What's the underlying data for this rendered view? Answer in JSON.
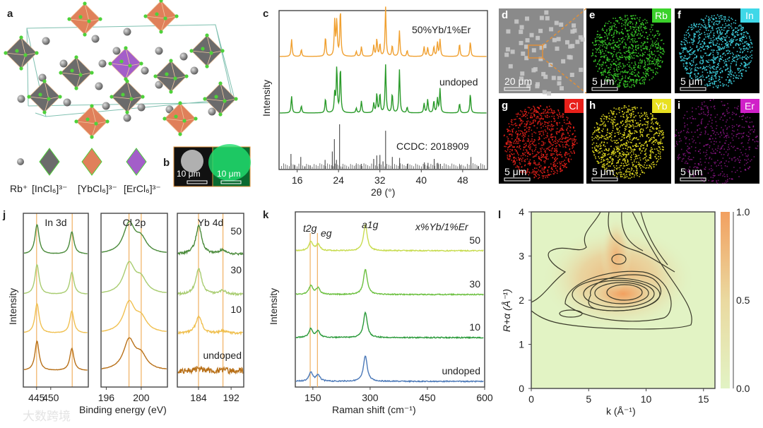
{
  "panel_labels": {
    "a": "a",
    "b": "b",
    "c": "c",
    "d": "d",
    "e": "e",
    "f": "f",
    "g": "g",
    "h": "h",
    "i": "i",
    "j": "j",
    "k": "k",
    "l": "l"
  },
  "panel_a": {
    "legend": [
      "Rb⁺",
      "[InCl₆]³⁻",
      "[YbCl₆]³⁻",
      "[ErCl₆]³⁻"
    ],
    "colors": {
      "rb": "#8a8a8a",
      "in": "#6b6b6b",
      "yb": "#e0805a",
      "er": "#a35ec9",
      "cl": "#4fd13a",
      "cell": "#7fc0b0"
    }
  },
  "panel_b": {
    "scalebars": [
      "10 μm",
      "10 μm"
    ]
  },
  "mapping": {
    "tiles": [
      {
        "id": "d",
        "label": "",
        "scalebar": "20 μm",
        "color": "#9a9a9a"
      },
      {
        "id": "e",
        "label": "Rb",
        "scalebar": "5 μm",
        "color": "#3ad12a"
      },
      {
        "id": "f",
        "label": "In",
        "scalebar": "5 μm",
        "color": "#3fd8e8"
      },
      {
        "id": "g",
        "label": "Cl",
        "scalebar": "5 μm",
        "color": "#e8201a"
      },
      {
        "id": "h",
        "label": "Yb",
        "scalebar": "5 μm",
        "color": "#e8e020"
      },
      {
        "id": "i",
        "label": "Er",
        "scalebar": "5 μm",
        "color": "#d020c8"
      }
    ]
  },
  "chart_data": [
    {
      "id": "c",
      "type": "line",
      "xlabel": "2θ (°)",
      "ylabel": "Intensity",
      "xlim": [
        12.5,
        52.8
      ],
      "xticks": [
        16,
        24,
        32,
        40,
        48
      ],
      "series": [
        {
          "name": "50%Yb/1%Er",
          "color": "#f0a030",
          "peaks": [
            [
              14.8,
              0.35
            ],
            [
              16.7,
              0.14
            ],
            [
              21.4,
              0.4
            ],
            [
              23.2,
              0.72
            ],
            [
              23.6,
              0.72
            ],
            [
              24.3,
              0.95
            ],
            [
              27.4,
              0.1
            ],
            [
              28.4,
              0.2
            ],
            [
              30.8,
              0.22
            ],
            [
              31.4,
              0.35
            ],
            [
              32.0,
              0.25
            ],
            [
              33.1,
              1.0
            ],
            [
              34.4,
              0.22
            ],
            [
              35.8,
              0.52
            ],
            [
              37.3,
              0.12
            ],
            [
              40.6,
              0.2
            ],
            [
              41.3,
              0.18
            ],
            [
              42.5,
              0.2
            ],
            [
              43.2,
              0.28
            ],
            [
              43.7,
              0.34
            ],
            [
              47.5,
              0.26
            ],
            [
              49.6,
              0.3
            ]
          ]
        },
        {
          "name": "undoped",
          "color": "#2a9a2a",
          "peaks": [
            [
              14.8,
              0.35
            ],
            [
              16.7,
              0.15
            ],
            [
              21.4,
              0.3
            ],
            [
              23.2,
              0.4
            ],
            [
              23.6,
              0.95
            ],
            [
              24.3,
              0.95
            ],
            [
              27.4,
              0.1
            ],
            [
              28.4,
              0.25
            ],
            [
              30.8,
              0.2
            ],
            [
              31.4,
              0.4
            ],
            [
              32.0,
              0.4
            ],
            [
              33.1,
              1.0
            ],
            [
              34.4,
              0.4
            ],
            [
              35.8,
              0.9
            ],
            [
              37.3,
              0.12
            ],
            [
              40.6,
              0.2
            ],
            [
              41.3,
              0.28
            ],
            [
              42.5,
              0.25
            ],
            [
              43.2,
              0.3
            ],
            [
              43.7,
              0.5
            ],
            [
              47.5,
              0.2
            ],
            [
              49.6,
              0.4
            ]
          ]
        },
        {
          "name": "CCDC: 2018909",
          "color": "#555555",
          "sticks": [
            [
              14.8,
              0.3
            ],
            [
              15.5,
              0.08
            ],
            [
              16.7,
              0.24
            ],
            [
              17.5,
              0.05
            ],
            [
              18.5,
              0.07
            ],
            [
              21.4,
              0.18
            ],
            [
              22.8,
              0.35
            ],
            [
              23.2,
              0.6
            ],
            [
              23.6,
              0.18
            ],
            [
              24.2,
              0.9
            ],
            [
              24.8,
              0.04
            ],
            [
              27.4,
              0.08
            ],
            [
              28.4,
              0.1
            ],
            [
              30.8,
              0.2
            ],
            [
              31.4,
              0.27
            ],
            [
              32.0,
              0.28
            ],
            [
              32.6,
              0.15
            ],
            [
              33.1,
              0.77
            ],
            [
              34.4,
              0.24
            ],
            [
              35.8,
              0.22
            ],
            [
              37.3,
              0.1
            ],
            [
              40.6,
              0.13
            ],
            [
              41.3,
              0.12
            ],
            [
              42.5,
              0.2
            ],
            [
              43.2,
              0.12
            ],
            [
              43.7,
              0.1
            ],
            [
              47.5,
              0.07
            ],
            [
              49.6,
              0.24
            ],
            [
              51.0,
              0.05
            ]
          ]
        }
      ]
    },
    {
      "id": "j",
      "type": "line",
      "xlabel": "Binding energy (eV)",
      "ylabel": "Intensity",
      "series_names": [
        "50",
        "30",
        "10",
        "undoped"
      ],
      "series_colors": [
        "#4a8a3a",
        "#a8cc70",
        "#f0c050",
        "#b87018"
      ],
      "subplots": [
        {
          "title": "In 3d",
          "xlim": [
            440.3,
            463.3
          ],
          "xticks": [
            445,
            450
          ],
          "peaks": [
            [
              445.0,
              1.0
            ],
            [
              457.6,
              0.75
            ]
          ],
          "width": 0.9
        },
        {
          "title": "Cl 2p",
          "xlim": [
            195.4,
            203.0
          ],
          "xticks": [
            196,
            200
          ],
          "peaks": [
            [
              198.6,
              1.0
            ],
            [
              200.0,
              0.45
            ]
          ],
          "width": 0.8
        },
        {
          "title": "Yb 4d",
          "xlim": [
            178.8,
            195.1
          ],
          "xticks": [
            184,
            192
          ],
          "peaks": [
            [
              184.0,
              1.0
            ],
            [
              190.0,
              0.15
            ]
          ],
          "width": 0.9,
          "amplitudes": [
            1.0,
            0.9,
            0.6,
            0.1
          ]
        }
      ]
    },
    {
      "id": "k",
      "type": "line",
      "xlabel": "Raman shift (cm⁻¹)",
      "ylabel": "Intensity",
      "xlim": [
        104,
        600
      ],
      "xticks": [
        150,
        300,
        450,
        600
      ],
      "title": "x%Yb/1%Er",
      "annotations": [
        "t2g",
        "eg",
        "a1g"
      ],
      "peaks": [
        [
          143,
          0.35
        ],
        [
          162,
          0.25
        ],
        [
          287,
          1.0
        ]
      ],
      "series": [
        {
          "name": "50",
          "color": "#c8dc50"
        },
        {
          "name": "30",
          "color": "#6cc040"
        },
        {
          "name": "10",
          "color": "#2a9a3a"
        },
        {
          "name": "undoped",
          "color": "#4a78b8"
        }
      ]
    },
    {
      "id": "l",
      "type": "heatmap",
      "xlabel": "k (Å⁻¹)",
      "ylabel": "R+α (Å⁻¹)",
      "xlim": [
        0,
        16
      ],
      "ylim": [
        0,
        4
      ],
      "xticks": [
        0,
        5,
        10,
        15
      ],
      "yticks": [
        0,
        1,
        2,
        3,
        4
      ],
      "colorbar": {
        "ticks": [
          "0.0",
          "0.5",
          "1.0"
        ],
        "low": "#e2f3c4",
        "high": "#f2a060"
      },
      "maximum": {
        "k": 8.0,
        "R": 2.15,
        "value": 1.0
      }
    }
  ],
  "watermark": "大数跨境"
}
